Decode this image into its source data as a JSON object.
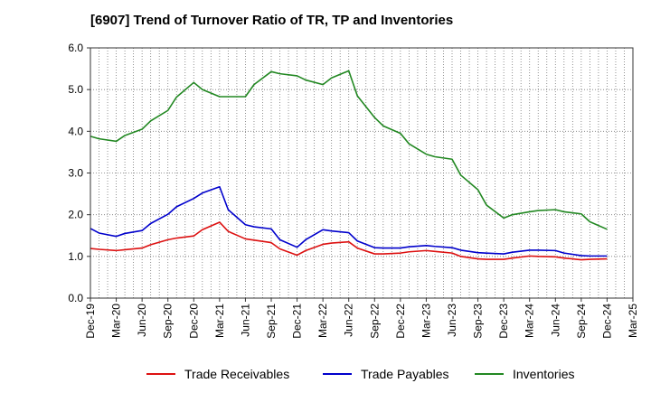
{
  "chart_data": {
    "type": "line",
    "title": "[6907]  Trend of Turnover Ratio of TR, TP and Inventories",
    "xlabel": "",
    "ylabel": "",
    "ylim": [
      0,
      6
    ],
    "yticks": [
      "0.0",
      "1.0",
      "2.0",
      "3.0",
      "4.0",
      "5.0",
      "6.0"
    ],
    "xtick_labels": [
      "Dec-19",
      "Mar-20",
      "Jun-20",
      "Sep-20",
      "Dec-20",
      "Mar-21",
      "Jun-21",
      "Sep-21",
      "Dec-21",
      "Mar-22",
      "Jun-22",
      "Sep-22",
      "Dec-22",
      "Mar-23",
      "Jun-23",
      "Sep-23",
      "Dec-23",
      "Mar-24",
      "Jun-24",
      "Sep-24",
      "Dec-24",
      "Mar-25"
    ],
    "grid": true,
    "legend_position": "bottom",
    "x": [
      "Dec-19",
      "Jan-20",
      "Mar-20",
      "Apr-20",
      "Jun-20",
      "Jul-20",
      "Sep-20",
      "Oct-20",
      "Dec-20",
      "Jan-21",
      "Mar-21",
      "Apr-21",
      "Jun-21",
      "Jul-21",
      "Sep-21",
      "Oct-21",
      "Dec-21",
      "Jan-22",
      "Mar-22",
      "Apr-22",
      "Jun-22",
      "Jul-22",
      "Sep-22",
      "Oct-22",
      "Dec-22",
      "Jan-23",
      "Mar-23",
      "Apr-23",
      "Jun-23",
      "Jul-23",
      "Sep-23",
      "Oct-23",
      "Dec-23",
      "Jan-24",
      "Mar-24",
      "Apr-24",
      "Jun-24",
      "Jul-24",
      "Sep-24",
      "Oct-24",
      "Dec-24"
    ],
    "series": [
      {
        "name": "Trade Receivables",
        "color": "#dd1111",
        "values": [
          1.19,
          1.17,
          1.14,
          1.16,
          1.2,
          1.28,
          1.4,
          1.44,
          1.49,
          1.64,
          1.82,
          1.6,
          1.42,
          1.39,
          1.33,
          1.18,
          1.03,
          1.14,
          1.29,
          1.32,
          1.35,
          1.2,
          1.06,
          1.06,
          1.08,
          1.11,
          1.14,
          1.12,
          1.08,
          1.0,
          0.94,
          0.93,
          0.93,
          0.96,
          1.01,
          1.0,
          0.99,
          0.96,
          0.92,
          0.93,
          0.94
        ]
      },
      {
        "name": "Trade Payables",
        "color": "#0000cc",
        "values": [
          1.67,
          1.56,
          1.48,
          1.55,
          1.62,
          1.79,
          2.01,
          2.19,
          2.39,
          2.52,
          2.67,
          2.12,
          1.76,
          1.71,
          1.66,
          1.4,
          1.22,
          1.4,
          1.64,
          1.61,
          1.57,
          1.37,
          1.21,
          1.2,
          1.2,
          1.23,
          1.26,
          1.24,
          1.21,
          1.15,
          1.09,
          1.08,
          1.06,
          1.1,
          1.15,
          1.15,
          1.14,
          1.08,
          1.02,
          1.01,
          1.01
        ]
      },
      {
        "name": "Inventories",
        "color": "#228822",
        "values": [
          3.88,
          3.82,
          3.76,
          3.9,
          4.05,
          4.25,
          4.5,
          4.82,
          5.17,
          5.0,
          4.83,
          4.83,
          4.83,
          5.12,
          5.43,
          5.38,
          5.33,
          5.23,
          5.12,
          5.28,
          5.45,
          4.85,
          4.33,
          4.13,
          3.95,
          3.7,
          3.45,
          3.39,
          3.33,
          2.95,
          2.6,
          2.23,
          1.92,
          2.0,
          2.07,
          2.1,
          2.12,
          2.07,
          2.02,
          1.83,
          1.65
        ]
      }
    ]
  }
}
